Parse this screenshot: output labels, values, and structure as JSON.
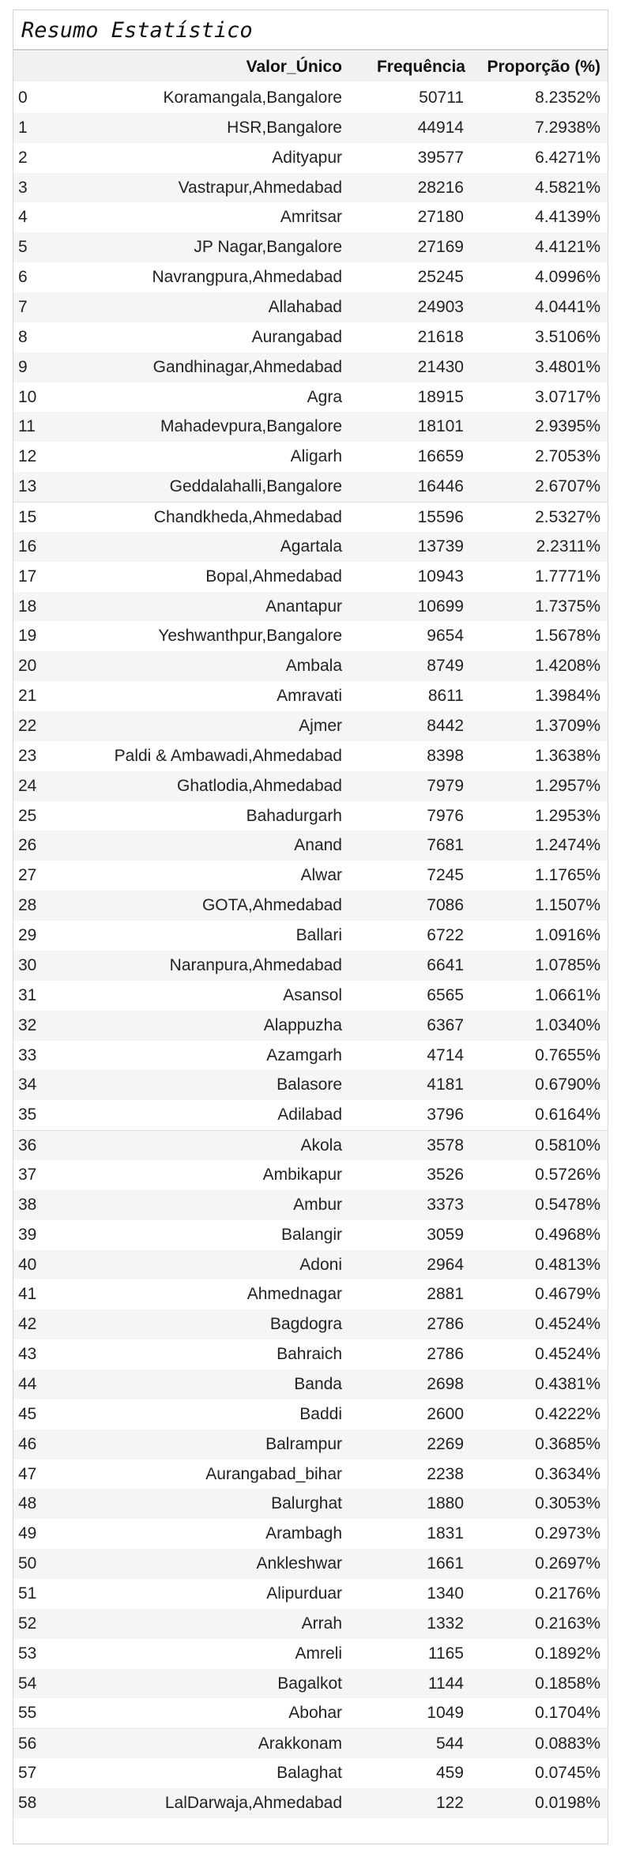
{
  "title": "Resumo Estatístico",
  "table": {
    "headers": {
      "index": "",
      "value": "Valor_Único",
      "frequency": "Frequência",
      "proportion": "Proporção (%)"
    },
    "rows": [
      {
        "index": "0",
        "value": "Koramangala,Bangalore",
        "frequency": "50711",
        "proportion": "8.2352%"
      },
      {
        "index": "1",
        "value": "HSR,Bangalore",
        "frequency": "44914",
        "proportion": "7.2938%"
      },
      {
        "index": "2",
        "value": "Adityapur",
        "frequency": "39577",
        "proportion": "6.4271%"
      },
      {
        "index": "3",
        "value": "Vastrapur,Ahmedabad",
        "frequency": "28216",
        "proportion": "4.5821%"
      },
      {
        "index": "4",
        "value": "Amritsar",
        "frequency": "27180",
        "proportion": "4.4139%"
      },
      {
        "index": "5",
        "value": "JP Nagar,Bangalore",
        "frequency": "27169",
        "proportion": "4.4121%"
      },
      {
        "index": "6",
        "value": "Navrangpura,Ahmedabad",
        "frequency": "25245",
        "proportion": "4.0996%"
      },
      {
        "index": "7",
        "value": "Allahabad",
        "frequency": "24903",
        "proportion": "4.0441%"
      },
      {
        "index": "8",
        "value": "Aurangabad",
        "frequency": "21618",
        "proportion": "3.5106%"
      },
      {
        "index": "9",
        "value": "Gandhinagar,Ahmedabad",
        "frequency": "21430",
        "proportion": "3.4801%"
      },
      {
        "index": "10",
        "value": "Agra",
        "frequency": "18915",
        "proportion": "3.0717%"
      },
      {
        "index": "11",
        "value": "Mahadevpura,Bangalore",
        "frequency": "18101",
        "proportion": "2.9395%"
      },
      {
        "index": "12",
        "value": "Aligarh",
        "frequency": "16659",
        "proportion": "2.7053%"
      },
      {
        "index": "13",
        "value": "Geddalahalli,Bangalore",
        "frequency": "16446",
        "proportion": "2.6707%"
      },
      {
        "index": "15",
        "value": "Chandkheda,Ahmedabad",
        "frequency": "15596",
        "proportion": "2.5327%"
      },
      {
        "index": "16",
        "value": "Agartala",
        "frequency": "13739",
        "proportion": "2.2311%"
      },
      {
        "index": "17",
        "value": "Bopal,Ahmedabad",
        "frequency": "10943",
        "proportion": "1.7771%"
      },
      {
        "index": "18",
        "value": "Anantapur",
        "frequency": "10699",
        "proportion": "1.7375%"
      },
      {
        "index": "19",
        "value": "Yeshwanthpur,Bangalore",
        "frequency": "9654",
        "proportion": "1.5678%"
      },
      {
        "index": "20",
        "value": "Ambala",
        "frequency": "8749",
        "proportion": "1.4208%"
      },
      {
        "index": "21",
        "value": "Amravati",
        "frequency": "8611",
        "proportion": "1.3984%"
      },
      {
        "index": "22",
        "value": "Ajmer",
        "frequency": "8442",
        "proportion": "1.3709%"
      },
      {
        "index": "23",
        "value": "Paldi & Ambawadi,Ahmedabad",
        "frequency": "8398",
        "proportion": "1.3638%"
      },
      {
        "index": "24",
        "value": "Ghatlodia,Ahmedabad",
        "frequency": "7979",
        "proportion": "1.2957%"
      },
      {
        "index": "25",
        "value": "Bahadurgarh",
        "frequency": "7976",
        "proportion": "1.2953%"
      },
      {
        "index": "26",
        "value": "Anand",
        "frequency": "7681",
        "proportion": "1.2474%"
      },
      {
        "index": "27",
        "value": "Alwar",
        "frequency": "7245",
        "proportion": "1.1765%"
      },
      {
        "index": "28",
        "value": "GOTA,Ahmedabad",
        "frequency": "7086",
        "proportion": "1.1507%"
      },
      {
        "index": "29",
        "value": "Ballari",
        "frequency": "6722",
        "proportion": "1.0916%"
      },
      {
        "index": "30",
        "value": "Naranpura,Ahmedabad",
        "frequency": "6641",
        "proportion": "1.0785%"
      },
      {
        "index": "31",
        "value": "Asansol",
        "frequency": "6565",
        "proportion": "1.0661%"
      },
      {
        "index": "32",
        "value": "Alappuzha",
        "frequency": "6367",
        "proportion": "1.0340%"
      },
      {
        "index": "33",
        "value": "Azamgarh",
        "frequency": "4714",
        "proportion": "0.7655%"
      },
      {
        "index": "34",
        "value": "Balasore",
        "frequency": "4181",
        "proportion": "0.6790%"
      },
      {
        "index": "35",
        "value": "Adilabad",
        "frequency": "3796",
        "proportion": "0.6164%"
      },
      {
        "index": "36",
        "value": "Akola",
        "frequency": "3578",
        "proportion": "0.5810%"
      },
      {
        "index": "37",
        "value": "Ambikapur",
        "frequency": "3526",
        "proportion": "0.5726%"
      },
      {
        "index": "38",
        "value": "Ambur",
        "frequency": "3373",
        "proportion": "0.5478%"
      },
      {
        "index": "39",
        "value": "Balangir",
        "frequency": "3059",
        "proportion": "0.4968%"
      },
      {
        "index": "40",
        "value": "Adoni",
        "frequency": "2964",
        "proportion": "0.4813%"
      },
      {
        "index": "41",
        "value": "Ahmednagar",
        "frequency": "2881",
        "proportion": "0.4679%"
      },
      {
        "index": "42",
        "value": "Bagdogra",
        "frequency": "2786",
        "proportion": "0.4524%"
      },
      {
        "index": "43",
        "value": "Bahraich",
        "frequency": "2786",
        "proportion": "0.4524%"
      },
      {
        "index": "44",
        "value": "Banda",
        "frequency": "2698",
        "proportion": "0.4381%"
      },
      {
        "index": "45",
        "value": "Baddi",
        "frequency": "2600",
        "proportion": "0.4222%"
      },
      {
        "index": "46",
        "value": "Balrampur",
        "frequency": "2269",
        "proportion": "0.3685%"
      },
      {
        "index": "47",
        "value": "Aurangabad_bihar",
        "frequency": "2238",
        "proportion": "0.3634%"
      },
      {
        "index": "48",
        "value": "Balurghat",
        "frequency": "1880",
        "proportion": "0.3053%"
      },
      {
        "index": "49",
        "value": "Arambagh",
        "frequency": "1831",
        "proportion": "0.2973%"
      },
      {
        "index": "50",
        "value": "Ankleshwar",
        "frequency": "1661",
        "proportion": "0.2697%"
      },
      {
        "index": "51",
        "value": "Alipurduar",
        "frequency": "1340",
        "proportion": "0.2176%"
      },
      {
        "index": "52",
        "value": "Arrah",
        "frequency": "1332",
        "proportion": "0.2163%"
      },
      {
        "index": "53",
        "value": "Amreli",
        "frequency": "1165",
        "proportion": "0.1892%"
      },
      {
        "index": "54",
        "value": "Bagalkot",
        "frequency": "1144",
        "proportion": "0.1858%"
      },
      {
        "index": "55",
        "value": "Abohar",
        "frequency": "1049",
        "proportion": "0.1704%"
      },
      {
        "index": "56",
        "value": "Arakkonam",
        "frequency": "544",
        "proportion": "0.0883%"
      },
      {
        "index": "57",
        "value": "Balaghat",
        "frequency": "459",
        "proportion": "0.0745%"
      },
      {
        "index": "58",
        "value": "LalDarwaja,Ahmedabad",
        "frequency": "122",
        "proportion": "0.0198%"
      }
    ]
  }
}
